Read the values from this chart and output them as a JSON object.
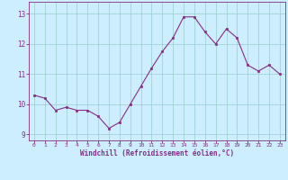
{
  "x": [
    0,
    1,
    2,
    3,
    4,
    5,
    6,
    7,
    8,
    9,
    10,
    11,
    12,
    13,
    14,
    15,
    16,
    17,
    18,
    19,
    20,
    21,
    22,
    23
  ],
  "y": [
    10.3,
    10.2,
    9.8,
    9.9,
    9.8,
    9.8,
    9.6,
    9.2,
    9.4,
    10.0,
    10.6,
    11.2,
    11.75,
    12.2,
    12.9,
    12.9,
    12.4,
    12.0,
    12.5,
    12.2,
    11.3,
    11.1,
    11.3,
    11.0
  ],
  "line_color": "#862d86",
  "marker_color": "#862d86",
  "bg_color": "#cceeff",
  "grid_color": "#99cccc",
  "xlabel": "Windchill (Refroidissement éolien,°C)",
  "xlabel_color": "#862d86",
  "tick_color": "#862d86",
  "spine_color": "#862d86",
  "ylim": [
    8.8,
    13.4
  ],
  "xlim": [
    -0.5,
    23.5
  ],
  "yticks": [
    9,
    10,
    11,
    12,
    13
  ],
  "xticks": [
    0,
    1,
    2,
    3,
    4,
    5,
    6,
    7,
    8,
    9,
    10,
    11,
    12,
    13,
    14,
    15,
    16,
    17,
    18,
    19,
    20,
    21,
    22,
    23
  ],
  "figsize": [
    3.2,
    2.0
  ],
  "dpi": 100
}
